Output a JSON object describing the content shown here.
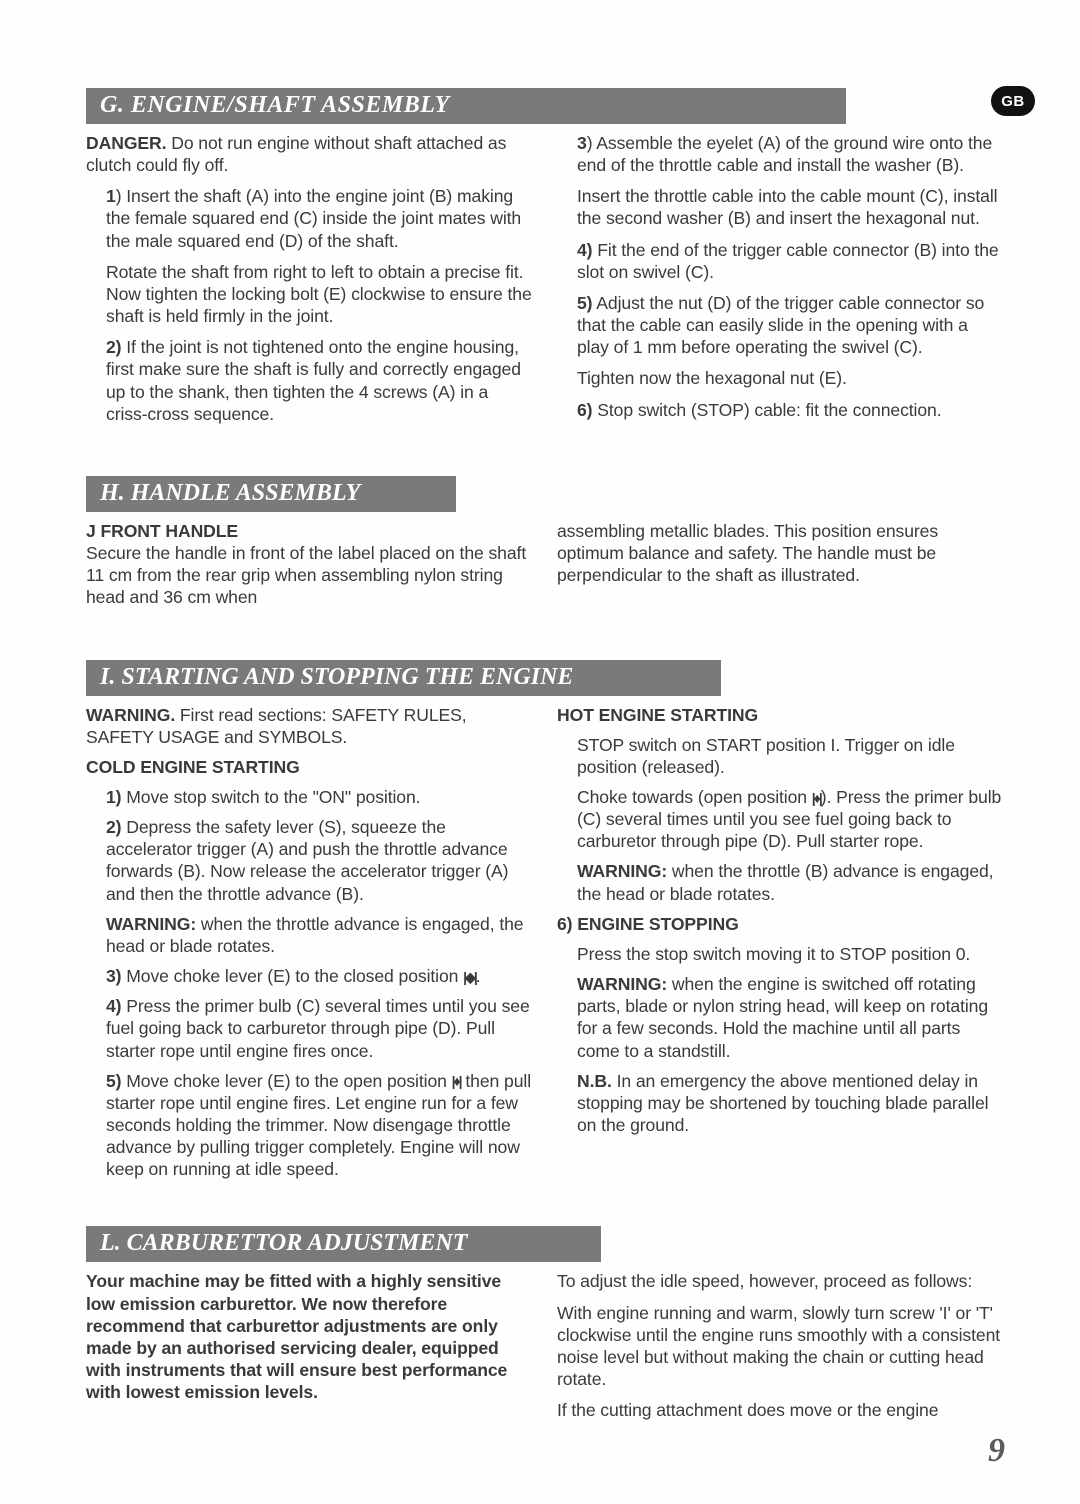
{
  "badge": "GB",
  "page_number": "9",
  "sectionG": {
    "title": "G. ENGINE/SHAFT ASSEMBLY",
    "left": {
      "danger_label": "DANGER.",
      "danger_text": " Do not run engine without shaft attached as clutch could fly off.",
      "p1_num": "1",
      "p1": ") Insert the shaft (A) into the engine joint (B) making the female squared end (C) inside the joint mates with the male squared end (D) of the shaft.",
      "p1b": "Rotate the shaft from right to left to obtain a precise fit. Now tighten the locking bolt (E) clockwise to ensure the shaft is held firmly in the joint.",
      "p2_num": "2)",
      "p2": " If the joint is not tightened onto the engine housing, first make sure the shaft is fully and correctly engaged up to the shank, then tighten the 4 screws (A) in a criss-cross sequence."
    },
    "right": {
      "p3_num": "3",
      "p3": ") Assemble the eyelet (A) of the ground wire onto the end of the throttle cable and install the washer (B).",
      "p3b": "Insert the throttle cable into the cable mount (C), install the second washer (B) and insert the hexagonal nut.",
      "p4_num": "4)",
      "p4": " Fit the end of the trigger cable connector (B) into the slot on swivel (C).",
      "p5_num": "5)",
      "p5": " Adjust the nut (D) of the trigger cable connector so that the cable can easily slide in the opening with a play of 1 mm before operating the swivel (C).",
      "p5b": "Tighten now the hexagonal nut (E).",
      "p6_num": "6)",
      "p6": " Stop switch (STOP) cable: fit the connection."
    }
  },
  "sectionH": {
    "title": "H. HANDLE ASSEMBLY",
    "left": {
      "sub": "J FRONT HANDLE",
      "p1": "Secure the handle in front of the label placed on the shaft 11 cm from the rear grip when assembling nylon string head and 36 cm when"
    },
    "right": {
      "p1": "assembling metallic blades. This position ensures optimum balance and safety. The handle must be perpendicular to the shaft as illustrated."
    }
  },
  "sectionI": {
    "title": "I. STARTING AND STOPPING THE ENGINE",
    "left": {
      "warn_label": "WARNING.",
      "warn_text": " First read sections: SAFETY RULES, SAFETY USAGE and SYMBOLS.",
      "cold_hdr": "COLD ENGINE STARTING",
      "p1_num": "1)",
      "p1": " Move stop switch to the \"ON\" position.",
      "p2_num": "2)",
      "p2": " Depress the safety lever (S), squeeze the accelerator trigger (A) and push the throttle advance forwards (B). Now release the accelerator  trigger (A) and then the throttle advance (B).",
      "p2b_label": "WARNING:",
      "p2b": " when the throttle advance is engaged, the head or blade rotates.",
      "p3_num": "3)",
      "p3_a": " Move choke lever (E) to the closed position ",
      "p3_b": ".",
      "p4_num": "4)",
      "p4": " Press the primer bulb (C) several times until you see fuel going back to carburetor through pipe (D). Pull starter rope until engine fires once.",
      "p5_num": "5)",
      "p5_a": " Move choke lever (E) to the open position ",
      "p5_b": " then pull starter rope until engine fires. Let engine run for a few seconds holding the trimmer. Now disengage throttle advance by pulling trigger completely. Engine will now keep on running at idle speed."
    },
    "right": {
      "hot_hdr": "HOT ENGINE STARTING",
      "p1": "STOP switch on START position I. Trigger on idle position (released).",
      "p2_a": "Choke towards (open position ",
      "p2_b": "). Press the primer bulb (C) several times until you see fuel going back to carburetor through pipe (D). Pull starter rope.",
      "p2c_label": "WARNING:",
      "p2c": " when the throttle (B) advance is engaged, the head or blade rotates.",
      "stop_hdr": "6) ENGINE STOPPING",
      "p3": "Press the stop switch moving it to STOP position 0.",
      "p4_label": "WARNING:",
      "p4": " when the engine is switched off rotating parts, blade or nylon string head, will keep on rotating for a few seconds. Hold the machine until all parts come to a standstill.",
      "p5_label": "N.B.",
      "p5": " In an emergency the above mentioned delay in stopping  may be shortened by touching blade parallel on the ground."
    }
  },
  "sectionL": {
    "title": "L. CARBURETTOR ADJUSTMENT",
    "left": {
      "p1": "Your machine may be fitted with a highly sensitive low emission carburettor. We now therefore recommend that carburettor adjustments are only made by an authorised servicing dealer, equipped with instruments that will ensure best performance with lowest emission levels."
    },
    "right": {
      "p1": "To adjust the idle speed, however, proceed as follows:",
      "p2": "With engine running and warm, slowly turn screw 'I' or 'T' clockwise until the engine runs smoothly with a consistent noise level but without making the chain or cutting head rotate.",
      "p3": "If the cutting attachment does move or the engine"
    }
  }
}
